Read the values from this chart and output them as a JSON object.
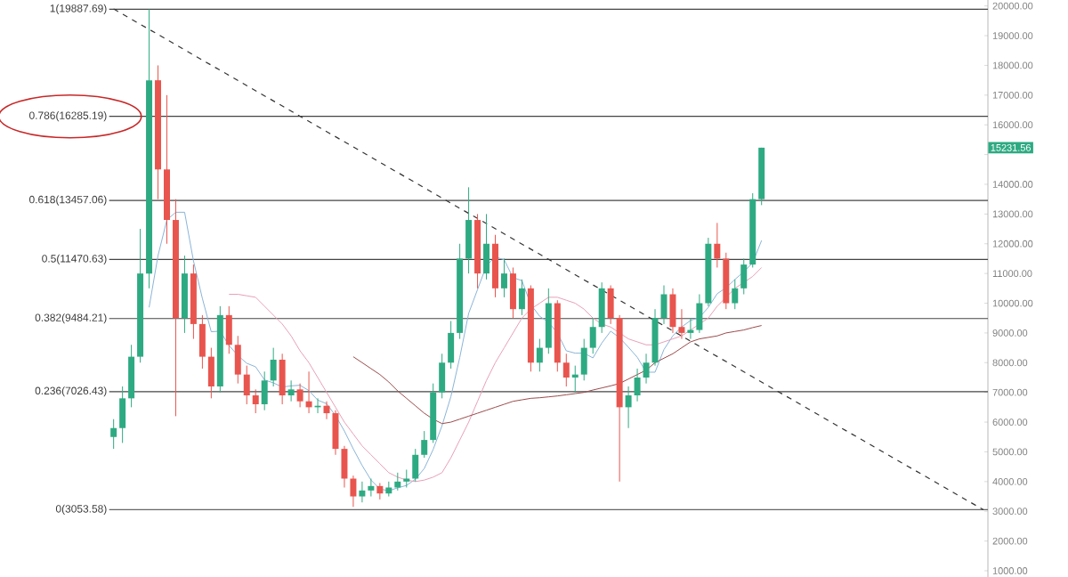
{
  "chart_data": {
    "type": "candlestick",
    "categories": [
      null,
      null,
      null,
      null,
      null,
      null,
      null,
      null,
      null,
      null,
      null,
      null,
      null,
      null,
      null,
      null,
      null,
      null,
      null,
      null,
      null,
      null,
      null,
      null,
      null,
      null,
      null,
      null,
      null,
      null,
      null,
      null,
      null,
      null,
      null,
      null,
      null,
      null,
      null,
      null,
      null,
      null,
      null,
      null,
      null,
      null,
      null,
      null,
      null,
      null,
      null,
      null,
      null,
      null,
      null,
      null,
      null,
      null,
      null,
      null,
      null,
      null,
      null,
      null,
      null,
      null,
      null,
      null,
      null,
      null,
      null,
      null,
      null,
      null,
      null,
      null,
      null,
      null,
      null,
      null,
      null,
      null,
      null,
      null,
      null,
      null,
      null,
      null,
      null,
      null,
      null,
      null,
      null,
      null,
      null,
      null,
      null,
      null,
      null
    ],
    "ohlc": [
      [
        5500,
        6100,
        5100,
        5800
      ],
      [
        5800,
        7200,
        5300,
        6800
      ],
      [
        6800,
        8600,
        6500,
        8200
      ],
      [
        8200,
        12500,
        8000,
        11000
      ],
      [
        11000,
        19887.69,
        10500,
        17500
      ],
      [
        17500,
        18000,
        13500,
        14500
      ],
      [
        14500,
        17000,
        12000,
        12800
      ],
      [
        12800,
        13500,
        6200,
        9500
      ],
      [
        9500,
        11600,
        9000,
        11000
      ],
      [
        11000,
        11300,
        8800,
        9300
      ],
      [
        9300,
        9600,
        7800,
        8200
      ],
      [
        8200,
        8500,
        6800,
        7200
      ],
      [
        7200,
        9900,
        7000,
        9600
      ],
      [
        9600,
        9900,
        8300,
        8600
      ],
      [
        8600,
        8900,
        7300,
        7600
      ],
      [
        7600,
        7900,
        6600,
        6900
      ],
      [
        6900,
        7100,
        6300,
        6600
      ],
      [
        6600,
        7700,
        6400,
        7400
      ],
      [
        7400,
        8500,
        7200,
        8100
      ],
      [
        8100,
        8300,
        6600,
        6900
      ],
      [
        6900,
        7400,
        6700,
        7100
      ],
      [
        7100,
        7300,
        6500,
        6700
      ],
      [
        6700,
        7700,
        6300,
        6500
      ],
      [
        6500,
        6800,
        6300,
        6550
      ],
      [
        6550,
        6700,
        6100,
        6300
      ],
      [
        6300,
        6400,
        4900,
        5100
      ],
      [
        5100,
        5200,
        3800,
        4100
      ],
      [
        4100,
        4200,
        3150,
        3500
      ],
      [
        3500,
        4000,
        3300,
        3700
      ],
      [
        3700,
        4100,
        3500,
        3850
      ],
      [
        3850,
        3950,
        3400,
        3600
      ],
      [
        3600,
        4000,
        3500,
        3800
      ],
      [
        3800,
        4300,
        3700,
        4000
      ],
      [
        4000,
        4400,
        3800,
        4100
      ],
      [
        4100,
        5100,
        4000,
        4900
      ],
      [
        4900,
        5700,
        4800,
        5400
      ],
      [
        5400,
        7300,
        5300,
        7000
      ],
      [
        7000,
        8300,
        6800,
        8000
      ],
      [
        8000,
        9400,
        7800,
        9000
      ],
      [
        9000,
        12000,
        8800,
        11500
      ],
      [
        11500,
        13900,
        11000,
        12800
      ],
      [
        12800,
        13000,
        10500,
        11000
      ],
      [
        11000,
        13000,
        10800,
        12000
      ],
      [
        12000,
        12300,
        10200,
        10500
      ],
      [
        10500,
        11500,
        10200,
        11000
      ],
      [
        11000,
        11200,
        9500,
        9800
      ],
      [
        9800,
        10800,
        9600,
        10500
      ],
      [
        10500,
        10600,
        7700,
        8000
      ],
      [
        8000,
        8800,
        7700,
        8500
      ],
      [
        8500,
        10500,
        8300,
        10000
      ],
      [
        10000,
        10100,
        7700,
        8000
      ],
      [
        8000,
        8300,
        7200,
        7500
      ],
      [
        7500,
        7900,
        7000,
        7600
      ],
      [
        7600,
        8800,
        7400,
        8500
      ],
      [
        8500,
        9500,
        8300,
        9200
      ],
      [
        9200,
        10700,
        9000,
        10500
      ],
      [
        10500,
        10600,
        9300,
        9500
      ],
      [
        9500,
        9600,
        4000,
        6500
      ],
      [
        6500,
        7200,
        5800,
        6900
      ],
      [
        6900,
        7800,
        6700,
        7500
      ],
      [
        7500,
        8300,
        7300,
        8000
      ],
      [
        8000,
        9800,
        7900,
        9500
      ],
      [
        9500,
        10600,
        9300,
        10300
      ],
      [
        10300,
        10500,
        9000,
        9200
      ],
      [
        9200,
        9800,
        8800,
        9000
      ],
      [
        9000,
        9500,
        8800,
        9100
      ],
      [
        9100,
        10300,
        9000,
        10000
      ],
      [
        10000,
        12200,
        9900,
        12000
      ],
      [
        12000,
        12700,
        11200,
        11500
      ],
      [
        11500,
        11700,
        9800,
        10000
      ],
      [
        10000,
        10800,
        9800,
        10500
      ],
      [
        10500,
        11500,
        10300,
        11300
      ],
      [
        11300,
        13700,
        11200,
        13500
      ],
      [
        13500,
        15231.56,
        13300,
        15231.56
      ],
      null,
      null,
      null,
      null,
      null,
      null,
      null,
      null,
      null,
      null,
      null,
      null,
      null,
      null,
      null,
      null,
      null,
      null,
      null,
      null,
      null,
      null,
      null,
      null,
      null
    ],
    "colors": [
      "#2eaa82",
      "#2eaa82",
      "#2eaa82",
      "#2eaa82",
      "#2eaa82",
      "#e8554e",
      "#e8554e",
      "#e8554e",
      "#2eaa82",
      "#e8554e",
      "#e8554e",
      "#e8554e",
      "#2eaa82",
      "#e8554e",
      "#e8554e",
      "#e8554e",
      "#e8554e",
      "#2eaa82",
      "#2eaa82",
      "#e8554e",
      "#2eaa82",
      "#e8554e",
      "#e8554e",
      "#2eaa82",
      "#e8554e",
      "#e8554e",
      "#e8554e",
      "#e8554e",
      "#2eaa82",
      "#2eaa82",
      "#e8554e",
      "#2eaa82",
      "#2eaa82",
      "#2eaa82",
      "#2eaa82",
      "#2eaa82",
      "#2eaa82",
      "#2eaa82",
      "#2eaa82",
      "#2eaa82",
      "#2eaa82",
      "#e8554e",
      "#2eaa82",
      "#e8554e",
      "#2eaa82",
      "#e8554e",
      "#2eaa82",
      "#e8554e",
      "#2eaa82",
      "#2eaa82",
      "#e8554e",
      "#e8554e",
      "#2eaa82",
      "#2eaa82",
      "#2eaa82",
      "#2eaa82",
      "#e8554e",
      "#e8554e",
      "#2eaa82",
      "#2eaa82",
      "#2eaa82",
      "#2eaa82",
      "#2eaa82",
      "#e8554e",
      "#e8554e",
      "#2eaa82",
      "#2eaa82",
      "#2eaa82",
      "#e8554e",
      "#e8554e",
      "#2eaa82",
      "#2eaa82",
      "#2eaa82",
      "#2eaa82",
      null,
      null,
      null,
      null,
      null,
      null,
      null,
      null,
      null,
      null,
      null,
      null,
      null,
      null,
      null,
      null,
      null,
      null,
      null,
      null,
      null,
      null,
      null,
      null,
      null
    ],
    "series": [
      {
        "type": "line",
        "color": "#8ab4d8",
        "values": [
          null,
          null,
          null,
          null,
          9860,
          11600,
          12800,
          13060,
          13060,
          11420,
          10160,
          9040,
          9060,
          8580,
          8240,
          7980,
          7860,
          7420,
          7320,
          7180,
          7220,
          7240,
          7060,
          6740,
          6620,
          6220,
          5700,
          5100,
          4540,
          4050,
          3750,
          3690,
          3790,
          3870,
          4080,
          4440,
          5080,
          5880,
          6860,
          8180,
          9660,
          10460,
          11260,
          11560,
          11460,
          10860,
          10760,
          9960,
          9560,
          9360,
          9000,
          8400,
          8320,
          8320,
          8160,
          8660,
          9060,
          8840,
          8520,
          8180,
          7680,
          7680,
          8440,
          8900,
          9200,
          9420,
          9520,
          9860,
          10320,
          10520,
          10800,
          11060,
          11360,
          12110,
          null,
          null,
          null,
          null,
          null,
          null,
          null,
          null,
          null,
          null,
          null,
          null,
          null,
          null,
          null,
          null,
          null,
          null,
          null,
          null,
          null,
          null,
          null,
          null,
          null
        ]
      },
      {
        "type": "line",
        "color": "#e8a0b8",
        "values": [
          null,
          null,
          null,
          null,
          null,
          null,
          null,
          null,
          null,
          null,
          null,
          null,
          null,
          10300,
          10300,
          10250,
          10200,
          9900,
          9600,
          9300,
          8900,
          8400,
          8000,
          7500,
          7000,
          6500,
          6000,
          5600,
          5200,
          4900,
          4600,
          4300,
          4150,
          4050,
          4000,
          4050,
          4150,
          4300,
          4800,
          5400,
          6000,
          6700,
          7400,
          8000,
          8500,
          9000,
          9500,
          9800,
          10000,
          10200,
          10200,
          10100,
          10000,
          9800,
          9500,
          9300,
          9200,
          9000,
          8800,
          8700,
          8600,
          8600,
          8700,
          8800,
          8900,
          9100,
          9300,
          9500,
          9900,
          10200,
          10500,
          10700,
          10900,
          11200,
          null,
          null,
          null,
          null,
          null,
          null,
          null,
          null,
          null,
          null,
          null,
          null,
          null,
          null,
          null,
          null,
          null,
          null,
          null,
          null,
          null,
          null,
          null,
          null,
          null
        ]
      },
      {
        "type": "line",
        "color": "#9b4a4a",
        "values": [
          null,
          null,
          null,
          null,
          null,
          null,
          null,
          null,
          null,
          null,
          null,
          null,
          null,
          null,
          null,
          null,
          null,
          null,
          null,
          null,
          null,
          null,
          null,
          null,
          null,
          null,
          null,
          8200,
          8000,
          7800,
          7600,
          7350,
          7050,
          6800,
          6550,
          6300,
          6100,
          5950,
          6000,
          6100,
          6200,
          6300,
          6400,
          6500,
          6600,
          6700,
          6750,
          6800,
          6820,
          6850,
          6880,
          6920,
          6960,
          7000,
          7080,
          7150,
          7220,
          7300,
          7450,
          7600,
          7750,
          8000,
          8150,
          8300,
          8500,
          8700,
          8800,
          8850,
          8900,
          9000,
          9050,
          9100,
          9180,
          9250,
          null,
          null,
          null,
          null,
          null,
          null,
          null,
          null,
          null,
          null,
          null,
          null,
          null,
          null,
          null,
          null,
          null,
          null,
          null,
          null,
          null,
          null,
          null,
          null,
          null
        ]
      },
      {
        "type": "line",
        "color": "#333333",
        "line_style": "dashed",
        "values": [
          19900,
          null,
          null,
          null,
          null,
          null,
          null,
          null,
          null,
          null,
          null,
          null,
          null,
          null,
          null,
          null,
          null,
          null,
          null,
          null,
          null,
          null,
          null,
          null,
          null,
          null,
          null,
          null,
          null,
          null,
          null,
          null,
          null,
          null,
          null,
          null,
          null,
          null,
          null,
          null,
          null,
          null,
          null,
          null,
          null,
          null,
          null,
          null,
          null,
          null,
          null,
          null,
          null,
          null,
          null,
          null,
          null,
          null,
          null,
          null,
          null,
          null,
          null,
          null,
          null,
          null,
          null,
          null,
          null,
          null,
          null,
          null,
          null,
          null,
          null,
          null,
          null,
          null,
          null,
          null,
          null,
          null,
          null,
          null,
          null,
          null,
          null,
          null,
          null,
          null,
          null,
          null,
          null,
          null,
          null,
          null,
          null,
          null,
          3050
        ]
      }
    ],
    "ylim": [
      790,
      20200
    ],
    "yticks": [
      {
        "value": 1000,
        "label": "1000.00"
      },
      {
        "value": 2000,
        "label": "2000.00"
      },
      {
        "value": 3000,
        "label": "3000.00"
      },
      {
        "value": 4000,
        "label": "4000.00"
      },
      {
        "value": 5000,
        "label": "5000.00"
      },
      {
        "value": 6000,
        "label": "6000.00"
      },
      {
        "value": 7000,
        "label": "7000.00"
      },
      {
        "value": 8000,
        "label": "8000.00"
      },
      {
        "value": 9000,
        "label": "9000.00"
      },
      {
        "value": 10000,
        "label": "10000.00"
      },
      {
        "value": 11000,
        "label": "11000.00"
      },
      {
        "value": 12000,
        "label": "12000.00"
      },
      {
        "value": 13000,
        "label": "13000.00"
      },
      {
        "value": 14000,
        "label": "14000.00"
      },
      {
        "value": 15000,
        "label": null
      },
      {
        "value": 16000,
        "label": "16000.00"
      },
      {
        "value": 17000,
        "label": "17000.00"
      },
      {
        "value": 18000,
        "label": "18000.00"
      },
      {
        "value": 19000,
        "label": "19000.00"
      },
      {
        "value": 20000,
        "label": "20000.00"
      }
    ],
    "ref_lines": [
      {
        "axis": "y",
        "value": 19887.69,
        "label": "1(19887.69)",
        "color": "#444444"
      },
      {
        "axis": "y",
        "value": 16285.19,
        "label": "0.786(16285.19)",
        "color": "#444444"
      },
      {
        "axis": "y",
        "value": 13457.06,
        "label": "0.618(13457.06)",
        "color": "#444444"
      },
      {
        "axis": "y",
        "value": 11470.63,
        "label": "0.5(11470.63)",
        "color": "#444444"
      },
      {
        "axis": "y",
        "value": 9484.21,
        "label": "0.382(9484.21)",
        "color": "#444444"
      },
      {
        "axis": "y",
        "value": 7026.43,
        "label": "0.236(7026.43)",
        "color": "#444444"
      },
      {
        "axis": "y",
        "value": 3053.58,
        "label": "0(3053.58)",
        "color": "#666666"
      }
    ],
    "annotations": [
      "15231.56"
    ]
  }
}
